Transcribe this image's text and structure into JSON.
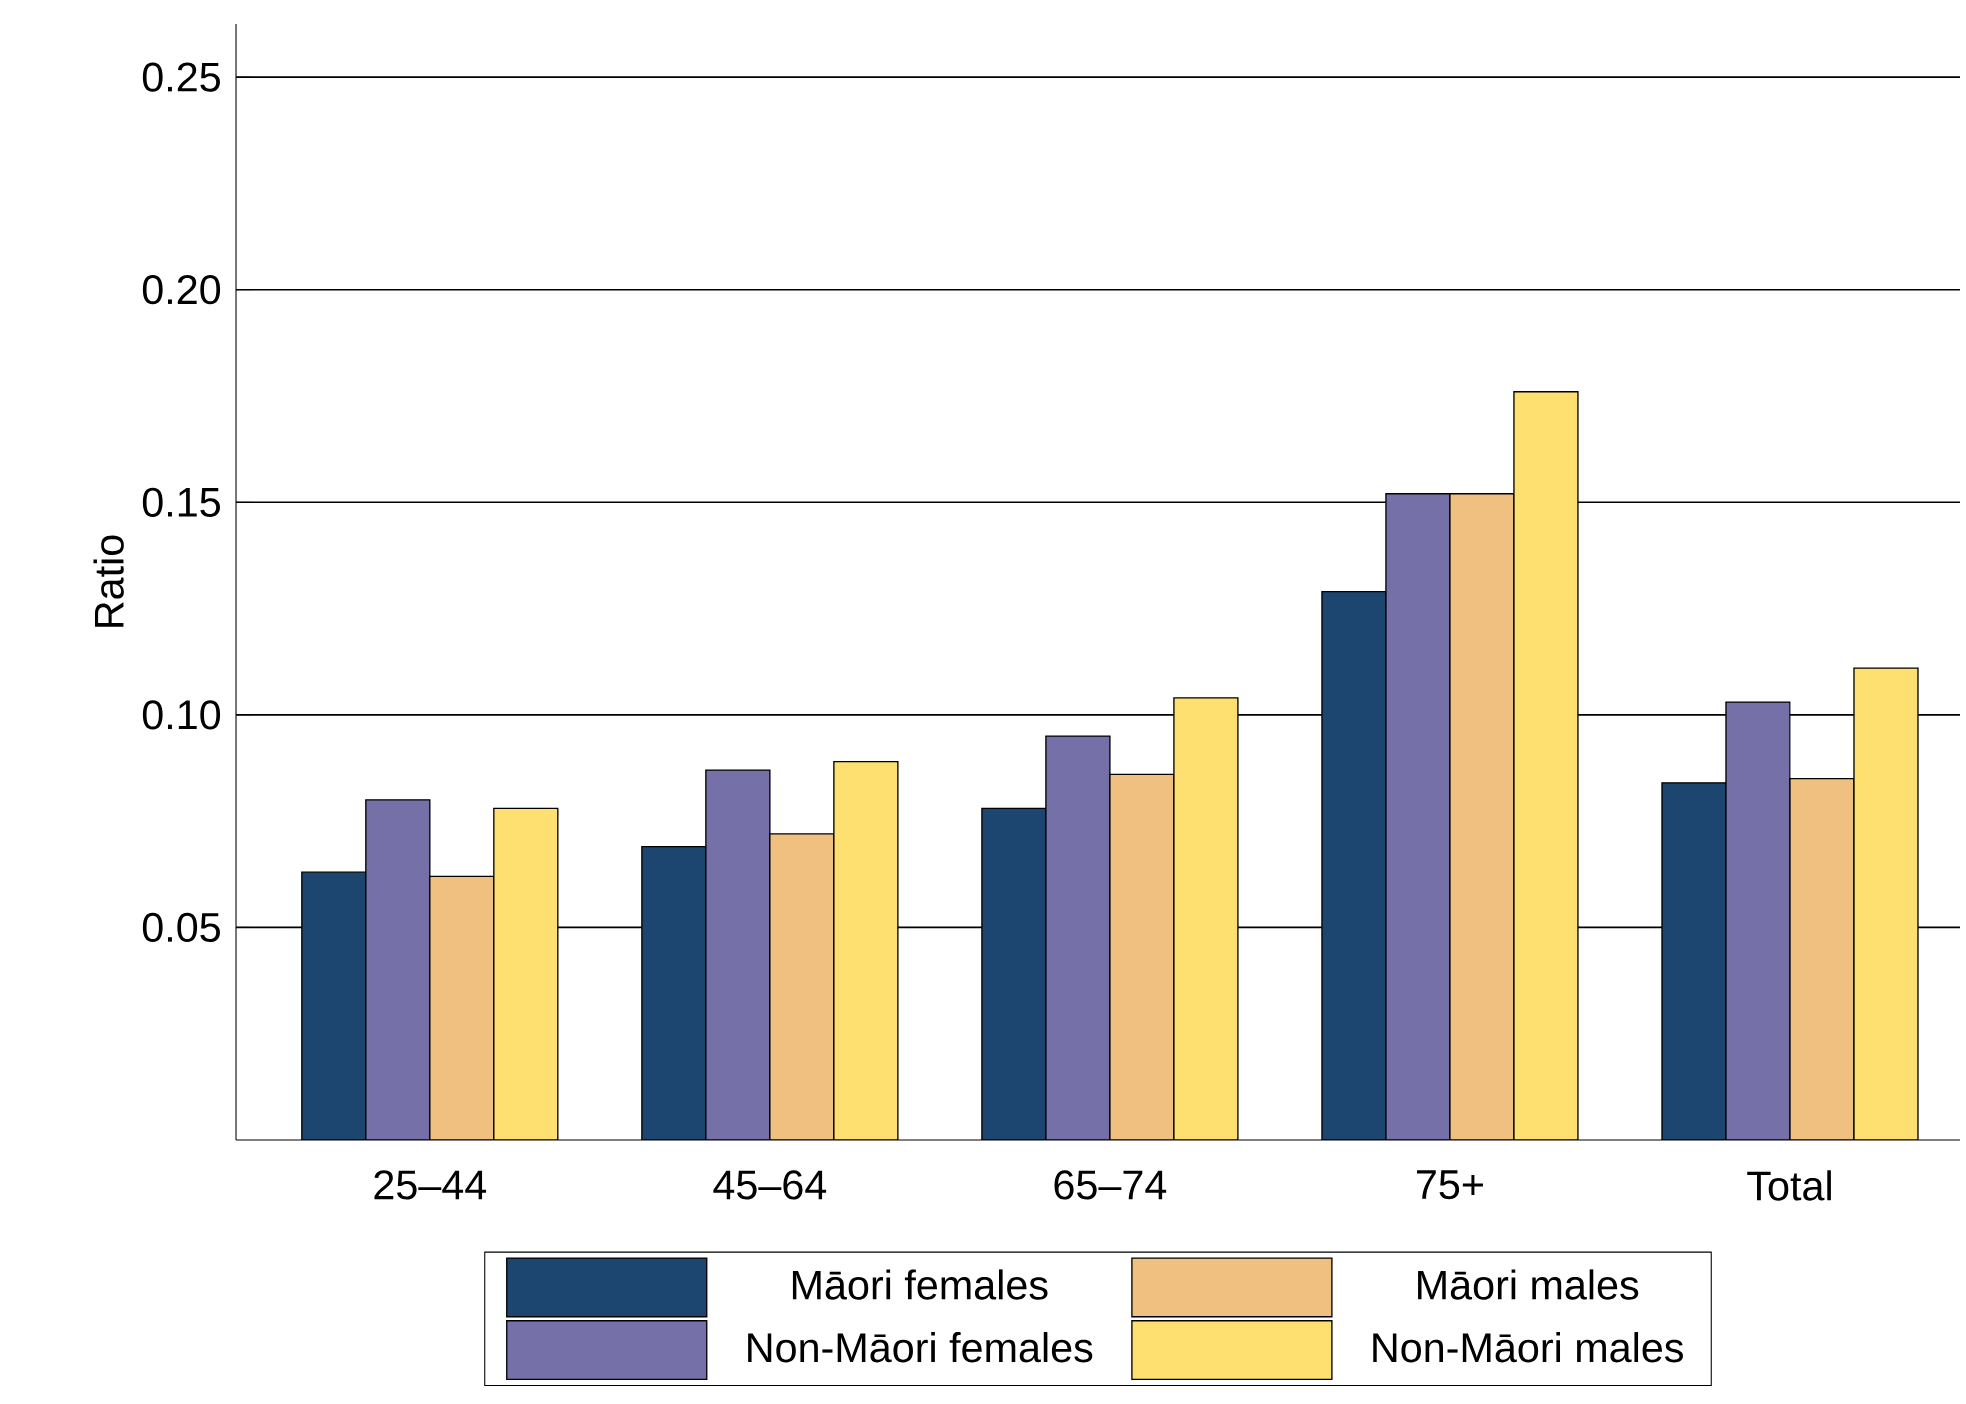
{
  "chart_data": {
    "type": "bar",
    "ylabel": "Ratio",
    "categories": [
      "25–44",
      "45–64",
      "65–74",
      "75+",
      "Total"
    ],
    "series": [
      {
        "name": "Māori females",
        "color": "#1c4670",
        "values": [
          0.063,
          0.069,
          0.078,
          0.129,
          0.084
        ]
      },
      {
        "name": "Non-Māori females",
        "color": "#7570a8",
        "values": [
          0.08,
          0.087,
          0.095,
          0.152,
          0.103
        ]
      },
      {
        "name": "Māori males",
        "color": "#f0c080",
        "values": [
          0.062,
          0.072,
          0.086,
          0.152,
          0.085
        ]
      },
      {
        "name": "Non-Māori males",
        "color": "#fde070",
        "values": [
          0.078,
          0.089,
          0.104,
          0.176,
          0.111
        ]
      }
    ],
    "ylim": [
      0,
      0.2625
    ],
    "yticks": [
      {
        "value": 0.05,
        "label": "0.05"
      },
      {
        "value": 0.1,
        "label": "0.10"
      },
      {
        "value": 0.15,
        "label": "0.15"
      },
      {
        "value": 0.2,
        "label": "0.20"
      },
      {
        "value": 0.25,
        "label": "0.25"
      }
    ],
    "grid": "y",
    "legend": "bottom"
  }
}
